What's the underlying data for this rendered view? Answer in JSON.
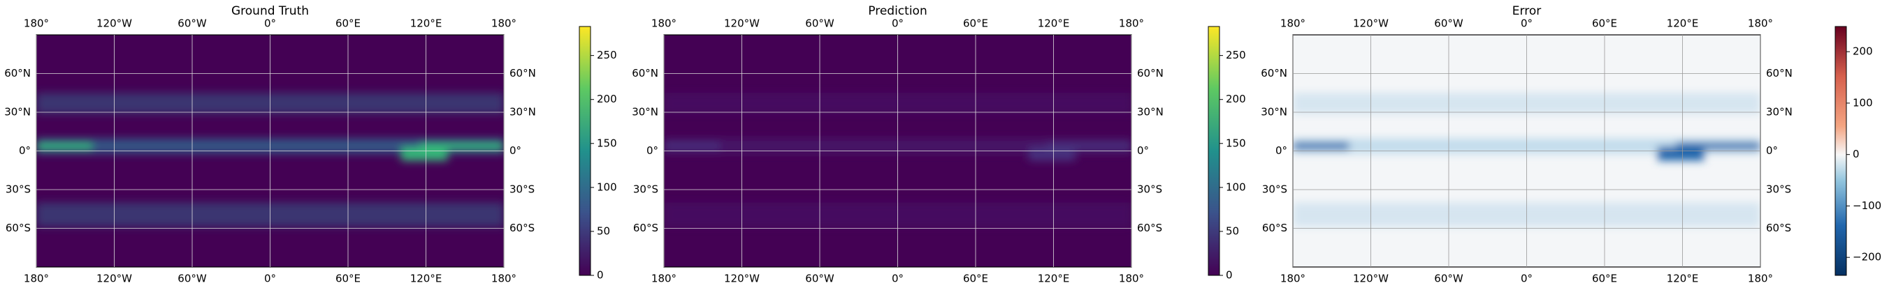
{
  "panels": [
    {
      "title": "Ground Truth",
      "cmap": "viridis",
      "xlim": [
        -180,
        180
      ],
      "ylim": [
        -90,
        90
      ],
      "xticks": [
        {
          "value": -180,
          "label": "180°"
        },
        {
          "value": -120,
          "label": "120°W"
        },
        {
          "value": -60,
          "label": "60°W"
        },
        {
          "value": 0,
          "label": "0°"
        },
        {
          "value": 60,
          "label": "60°E"
        },
        {
          "value": 120,
          "label": "120°E"
        },
        {
          "value": 180,
          "label": "180°"
        }
      ],
      "yticks": [
        {
          "value": 60,
          "label": "60°N"
        },
        {
          "value": 30,
          "label": "30°N"
        },
        {
          "value": 0,
          "label": "0°"
        },
        {
          "value": -30,
          "label": "30°S"
        },
        {
          "value": -60,
          "label": "60°S"
        }
      ],
      "colorbar": {
        "lim": [
          0,
          283
        ],
        "ticks": [
          0,
          50,
          100,
          150,
          200,
          250
        ]
      }
    },
    {
      "title": "Prediction",
      "cmap": "viridis",
      "xlim": [
        -180,
        180
      ],
      "ylim": [
        -90,
        90
      ],
      "xticks": [
        {
          "value": -180,
          "label": "180°"
        },
        {
          "value": -120,
          "label": "120°W"
        },
        {
          "value": -60,
          "label": "60°W"
        },
        {
          "value": 0,
          "label": "0°"
        },
        {
          "value": 60,
          "label": "60°E"
        },
        {
          "value": 120,
          "label": "120°E"
        },
        {
          "value": 180,
          "label": "180°"
        }
      ],
      "yticks": [
        {
          "value": 60,
          "label": "60°N"
        },
        {
          "value": 30,
          "label": "30°N"
        },
        {
          "value": 0,
          "label": "0°"
        },
        {
          "value": -30,
          "label": "30°S"
        },
        {
          "value": -60,
          "label": "60°S"
        }
      ],
      "colorbar": {
        "lim": [
          0,
          283
        ],
        "ticks": [
          0,
          50,
          100,
          150,
          200,
          250
        ]
      }
    },
    {
      "title": "Error",
      "cmap": "RdBu_r",
      "xlim": [
        -180,
        180
      ],
      "ylim": [
        -90,
        90
      ],
      "xticks": [
        {
          "value": -180,
          "label": "180°"
        },
        {
          "value": -120,
          "label": "120°W"
        },
        {
          "value": -60,
          "label": "60°W"
        },
        {
          "value": 0,
          "label": "0°"
        },
        {
          "value": 60,
          "label": "60°E"
        },
        {
          "value": 120,
          "label": "120°E"
        },
        {
          "value": 180,
          "label": "180°"
        }
      ],
      "yticks": [
        {
          "value": 60,
          "label": "60°N"
        },
        {
          "value": 30,
          "label": "30°N"
        },
        {
          "value": 0,
          "label": "0°"
        },
        {
          "value": -30,
          "label": "30°S"
        },
        {
          "value": -60,
          "label": "60°S"
        }
      ],
      "colorbar": {
        "lim": [
          -235,
          249
        ],
        "ticks": [
          {
            "value": -200,
            "label": "−200"
          },
          {
            "value": -100,
            "label": "−100"
          },
          0,
          100,
          200
        ]
      }
    }
  ]
}
